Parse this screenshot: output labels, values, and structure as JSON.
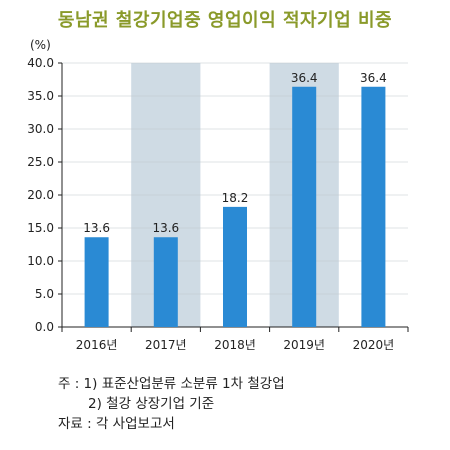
{
  "title": "동남권 철강기업중 영업이익 적자기업 비중",
  "unit_label": "(%)",
  "notes": [
    "주 : 1) 표준산업분류 소분류 1차 철강업",
    "       2) 철강 상장기업 기준",
    "자료 : 각 사업보고서"
  ],
  "colors": {
    "title": "#8a9a2a",
    "bar": "#2a8ad4",
    "shade": "#cfdbe4",
    "grid": "#ffffff",
    "axis": "#222222"
  },
  "chart_data": {
    "type": "bar",
    "title": "동남권 철강기업중 영업이익 적자기업 비중",
    "ylabel": "(%)",
    "xlabel": "",
    "categories": [
      "2016년",
      "2017년",
      "2018년",
      "2019년",
      "2020년"
    ],
    "values": [
      13.6,
      13.6,
      18.2,
      36.4,
      36.4
    ],
    "value_labels": [
      "13.6",
      "13.6",
      "18.2",
      "36.4",
      "36.4"
    ],
    "ylim": [
      0,
      40
    ],
    "yticks": [
      "0.0",
      "5.0",
      "10.0",
      "15.0",
      "20.0",
      "25.0",
      "30.0",
      "35.0",
      "40.0"
    ],
    "shaded_categories": [
      1,
      3
    ],
    "grid": true
  }
}
